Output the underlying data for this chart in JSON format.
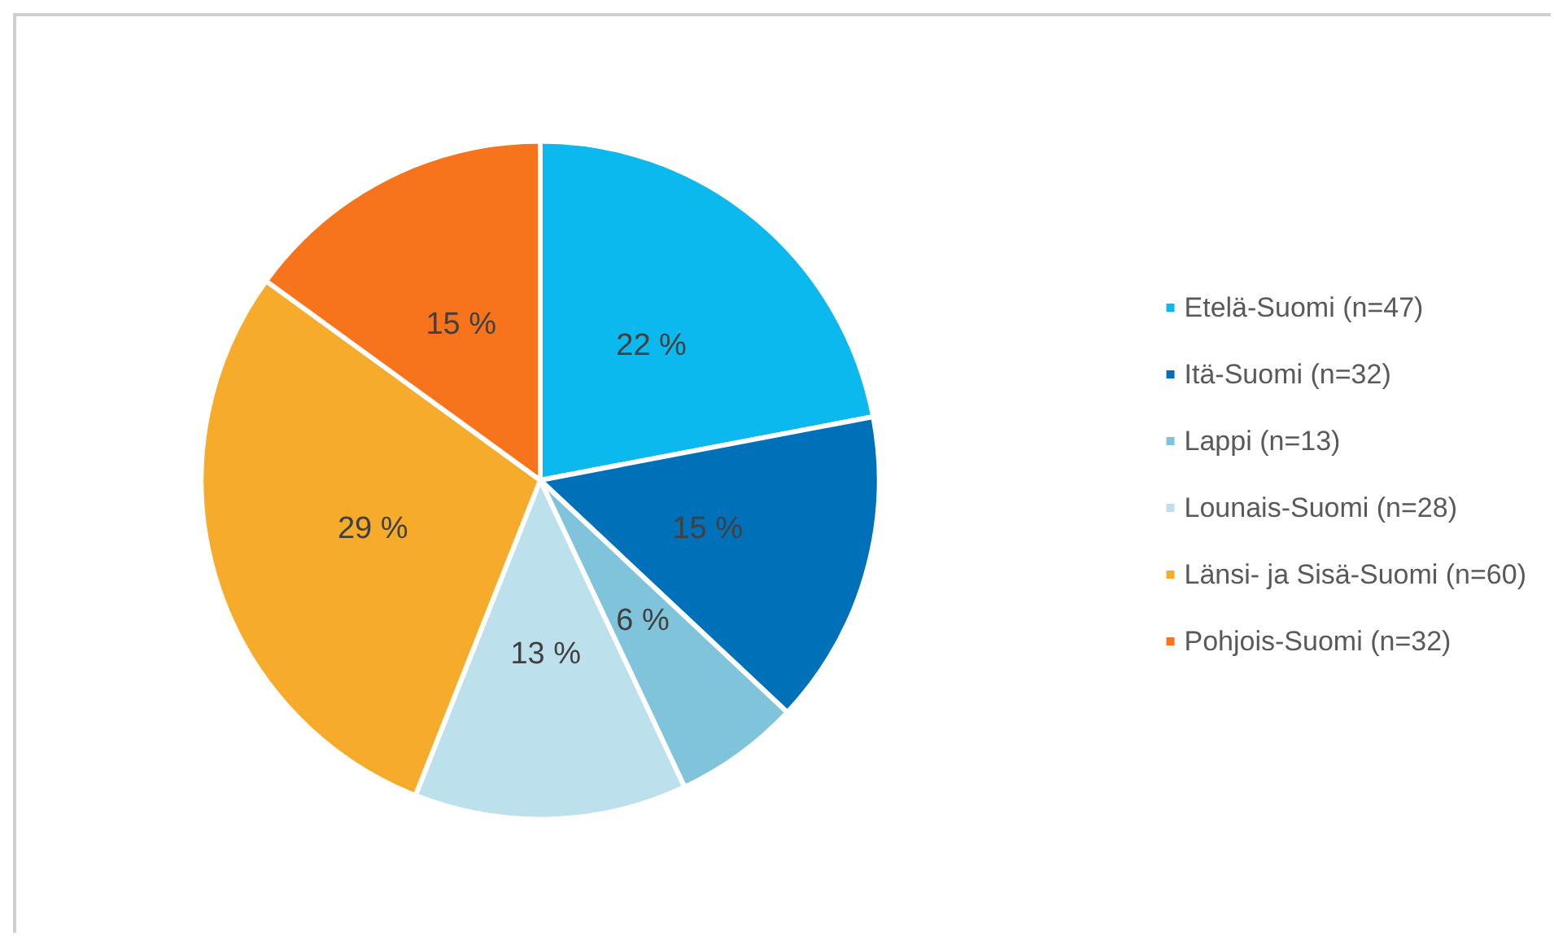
{
  "chart_data": {
    "type": "pie",
    "categories": [
      "Etelä-Suomi (n=47)",
      "Itä-Suomi (n=32)",
      "Lappi (n=13)",
      "Lounais-Suomi (n=28)",
      "Länsi- ja Sisä-Suomi (n=60)",
      "Pohjois-Suomi (n=32)"
    ],
    "values": [
      22,
      15,
      6,
      13,
      29,
      15
    ],
    "value_labels": [
      "22 %",
      "15 %",
      "6 %",
      "13 %",
      "29 %",
      "15 %"
    ],
    "colors": [
      "#0bb9ee",
      "#0070b8",
      "#80c4dc",
      "#bde1ec",
      "#f6ab2a",
      "#f7731c"
    ],
    "legend": "right"
  }
}
